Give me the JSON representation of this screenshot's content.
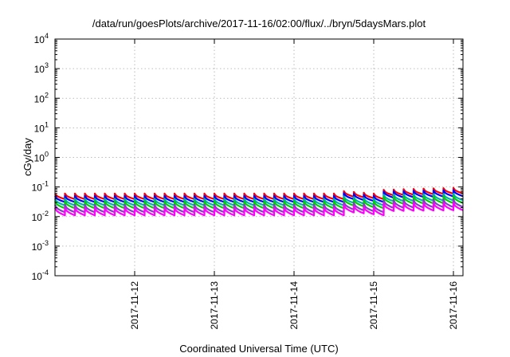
{
  "chart_data": {
    "type": "line",
    "title": "/data/run/goesPlots/archive/2017-11-16/02:00/flux/../bryn/5daysMars.plot",
    "xlabel": "Coordinated Universal Time (UTC)",
    "ylabel": "cGy/day",
    "yscale": "log",
    "ylim_exp": [
      -4,
      4
    ],
    "y_ticks": [
      {
        "base": "10",
        "exp": "-4"
      },
      {
        "base": "10",
        "exp": "-3"
      },
      {
        "base": "10",
        "exp": "-2"
      },
      {
        "base": "10",
        "exp": "-1"
      },
      {
        "base": "10",
        "exp": "0"
      },
      {
        "base": "10",
        "exp": "1"
      },
      {
        "base": "10",
        "exp": "2"
      },
      {
        "base": "10",
        "exp": "3"
      },
      {
        "base": "10",
        "exp": "4"
      }
    ],
    "xlim_days": [
      0,
      5.12
    ],
    "x_ticks": [
      {
        "label": "2017-11-12",
        "day": 1.0
      },
      {
        "label": "2017-11-13",
        "day": 2.0
      },
      {
        "label": "2017-11-14",
        "day": 3.0
      },
      {
        "label": "2017-11-15",
        "day": 4.0
      },
      {
        "label": "2017-11-16",
        "day": 5.0
      }
    ],
    "grid": true,
    "sawtooth_period_days": 0.125,
    "series": [
      {
        "color": "#ff0000",
        "peak": [
          [
            0,
            0.06
          ],
          [
            3.5,
            0.06
          ],
          [
            3.55,
            0.075
          ],
          [
            4.0,
            0.06
          ],
          [
            4.1,
            0.08
          ],
          [
            5.12,
            0.095
          ]
        ],
        "drop": 0.65
      },
      {
        "color": "#0000ff",
        "peak": [
          [
            0,
            0.05
          ],
          [
            3.5,
            0.05
          ],
          [
            3.55,
            0.065
          ],
          [
            4.0,
            0.05
          ],
          [
            4.1,
            0.07
          ],
          [
            5.12,
            0.08
          ]
        ],
        "drop": 0.62
      },
      {
        "color": "#00b0b0",
        "peak": [
          [
            0,
            0.04
          ],
          [
            3.5,
            0.04
          ],
          [
            3.55,
            0.05
          ],
          [
            4.0,
            0.04
          ],
          [
            4.1,
            0.055
          ],
          [
            5.12,
            0.06
          ]
        ],
        "drop": 0.6
      },
      {
        "color": "#00d000",
        "peak": [
          [
            0,
            0.033
          ],
          [
            3.5,
            0.033
          ],
          [
            3.55,
            0.042
          ],
          [
            4.0,
            0.033
          ],
          [
            4.1,
            0.046
          ],
          [
            5.12,
            0.05
          ]
        ],
        "drop": 0.58
      },
      {
        "color": "#8040c0",
        "peak": [
          [
            0,
            0.025
          ],
          [
            3.5,
            0.025
          ],
          [
            3.55,
            0.032
          ],
          [
            4.0,
            0.025
          ],
          [
            4.1,
            0.035
          ],
          [
            5.12,
            0.038
          ]
        ],
        "drop": 0.56
      },
      {
        "color": "#ff00ff",
        "peak": [
          [
            0,
            0.02
          ],
          [
            3.5,
            0.02
          ],
          [
            3.55,
            0.026
          ],
          [
            4.0,
            0.02
          ],
          [
            4.1,
            0.028
          ],
          [
            5.12,
            0.03
          ]
        ],
        "drop": 0.55
      }
    ]
  }
}
